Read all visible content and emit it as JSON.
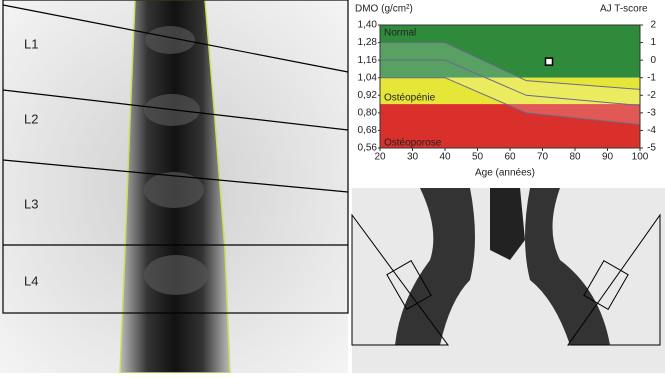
{
  "spine": {
    "labels": [
      "L1",
      "L2",
      "L3",
      "L4"
    ]
  },
  "chart_data": {
    "type": "scatter",
    "ylabel": "DMO (g/cm²)",
    "y2label": "AJ T-score",
    "xlabel": "Age (années)",
    "x": [
      72
    ],
    "values": [
      1.15
    ],
    "color": "#ffffff",
    "xlim": [
      20,
      100
    ],
    "xticks": [
      20,
      30,
      40,
      50,
      60,
      70,
      80,
      90,
      100
    ],
    "ylim": [
      0.56,
      1.4
    ],
    "yticks": [
      {
        "value": 0.56,
        "label": "0,56"
      },
      {
        "value": 0.68,
        "label": "0,68"
      },
      {
        "value": 0.8,
        "label": "0,80"
      },
      {
        "value": 0.92,
        "label": "0,92"
      },
      {
        "value": 1.04,
        "label": "1,04"
      },
      {
        "value": 1.16,
        "label": "1,16"
      },
      {
        "value": 1.28,
        "label": "1,28"
      },
      {
        "value": 1.4,
        "label": "1,40"
      }
    ],
    "y2lim": [
      -5,
      2
    ],
    "y2ticks": [
      -5,
      -4,
      -3,
      -2,
      -1,
      0,
      1,
      2
    ],
    "zones": [
      {
        "label": "Normal",
        "color": "#2f8a3c",
        "from": 1.04,
        "to": 1.4
      },
      {
        "label": "Ostéopénie",
        "color": "#e6e639",
        "from": 0.86,
        "to": 1.04
      },
      {
        "label": "Ostéoporose",
        "color": "#d9302b",
        "from": 0.56,
        "to": 0.86
      }
    ],
    "reference": {
      "x": [
        20,
        40,
        65,
        100
      ],
      "upper": [
        1.28,
        1.28,
        1.02,
        0.96
      ],
      "mean": [
        1.16,
        1.16,
        0.92,
        0.85
      ],
      "lower": [
        1.04,
        1.04,
        0.8,
        0.72
      ]
    }
  }
}
